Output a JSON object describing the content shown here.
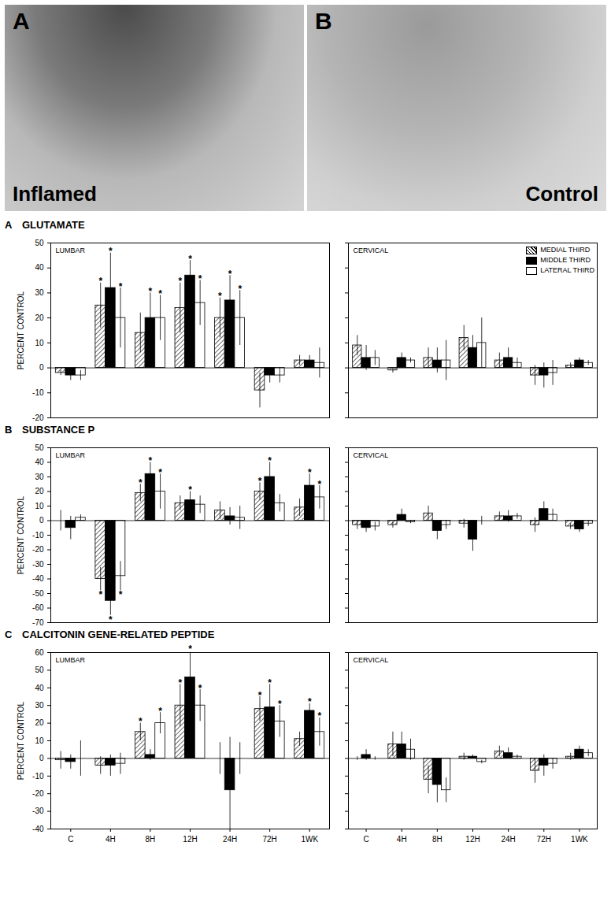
{
  "photos": [
    {
      "panel": "A",
      "label": "Inflamed"
    },
    {
      "panel": "B",
      "label": "Control"
    }
  ],
  "chart_data": [
    {
      "type": "bar",
      "panel": "A",
      "title": "GLUTAMATE",
      "subtitle": "LUMBAR",
      "y_label": "PERCENT CONTROL",
      "categories": [
        "C",
        "4H",
        "8H",
        "12H",
        "24H",
        "72H",
        "1WK"
      ],
      "ylim": [
        -20,
        50
      ],
      "yticks": [
        -20,
        -10,
        0,
        10,
        20,
        30,
        40,
        50
      ],
      "tick_labels": "y",
      "series": [
        {
          "name": "MEDIAL THIRD",
          "color": "#000000",
          "line_style": "hatched",
          "values": [
            -2,
            25,
            14,
            24,
            20,
            -9,
            3
          ],
          "errors": [
            1,
            9,
            8,
            10,
            8,
            7,
            2
          ],
          "significance": [
            null,
            "*",
            null,
            "*",
            "*",
            null,
            null
          ]
        },
        {
          "name": "MIDDLE THIRD",
          "color": "#000000",
          "values": [
            -3,
            32,
            20,
            37,
            27,
            -3,
            3
          ],
          "errors": [
            2,
            14,
            10,
            6,
            10,
            3,
            2
          ],
          "significance": [
            null,
            "*",
            "*",
            "*",
            "*",
            null,
            null
          ]
        },
        {
          "name": "LATERAL THIRD",
          "color": "#ffffff",
          "values": [
            -3,
            20,
            20,
            26,
            20,
            -3,
            2
          ],
          "errors": [
            2,
            12,
            9,
            9,
            11,
            3,
            6
          ],
          "significance": [
            null,
            "*",
            "*",
            "*",
            "*",
            null,
            null
          ]
        }
      ]
    },
    {
      "type": "bar",
      "subtitle": "CERVICAL",
      "legend": "top-right",
      "categories": [
        "C",
        "4H",
        "8H",
        "12H",
        "24H",
        "72H",
        "1WK"
      ],
      "ylim": [
        -20,
        50
      ],
      "yticks": [
        -20,
        -10,
        0,
        10,
        20,
        30,
        40,
        50
      ],
      "tick_labels": false,
      "series": [
        {
          "name": "MEDIAL THIRD",
          "color": "#000000",
          "line_style": "hatched",
          "values": [
            9,
            -1,
            4,
            12,
            3,
            -3,
            1
          ],
          "errors": [
            4,
            1,
            4,
            5,
            3,
            4,
            1
          ],
          "significance": [
            null,
            null,
            null,
            null,
            null,
            null,
            null
          ]
        },
        {
          "name": "MIDDLE THIRD",
          "color": "#000000",
          "values": [
            4,
            4,
            3,
            8,
            4,
            -3,
            3
          ],
          "errors": [
            5,
            2,
            5,
            5,
            4,
            5,
            1
          ],
          "significance": [
            null,
            null,
            null,
            null,
            null,
            null,
            null
          ]
        },
        {
          "name": "LATERAL THIRD",
          "color": "#ffffff",
          "values": [
            4,
            3,
            3,
            10,
            2,
            -2,
            2
          ],
          "errors": [
            3,
            1,
            8,
            10,
            2,
            5,
            1
          ],
          "significance": [
            null,
            null,
            null,
            null,
            null,
            null,
            null
          ]
        }
      ]
    },
    {
      "type": "bar",
      "panel": "B",
      "title": "SUBSTANCE P",
      "subtitle": "LUMBAR",
      "y_label": "PERCENT CONTROL",
      "categories": [
        "C",
        "4H",
        "8H",
        "12H",
        "24H",
        "72H",
        "1WK"
      ],
      "ylim": [
        -70,
        50
      ],
      "yticks": [
        -70,
        -60,
        -50,
        -40,
        -30,
        -20,
        -10,
        0,
        10,
        20,
        30,
        40,
        50
      ],
      "tick_labels": "y",
      "series": [
        {
          "name": "MEDIAL THIRD",
          "color": "#000000",
          "line_style": "hatched",
          "values": [
            0,
            -40,
            19,
            12,
            7,
            20,
            9
          ],
          "errors": [
            7,
            8,
            6,
            5,
            6,
            6,
            6
          ],
          "significance": [
            null,
            "*",
            "*",
            null,
            null,
            "*",
            null
          ]
        },
        {
          "name": "MIDDLE THIRD",
          "color": "#000000",
          "values": [
            -5,
            -55,
            32,
            14,
            3,
            30,
            24
          ],
          "errors": [
            8,
            10,
            8,
            6,
            6,
            10,
            8
          ],
          "significance": [
            null,
            "*",
            "*",
            "*",
            null,
            "*",
            "*"
          ]
        },
        {
          "name": "LATERAL THIRD",
          "color": "#ffffff",
          "values": [
            2,
            -38,
            20,
            11,
            2,
            12,
            16
          ],
          "errors": [
            2,
            10,
            12,
            6,
            8,
            6,
            8
          ],
          "significance": [
            null,
            "*",
            "*",
            null,
            null,
            null,
            "*"
          ]
        }
      ]
    },
    {
      "type": "bar",
      "subtitle": "CERVICAL",
      "categories": [
        "C",
        "4H",
        "8H",
        "12H",
        "24H",
        "72H",
        "1WK"
      ],
      "ylim": [
        -70,
        50
      ],
      "yticks": [
        -70,
        -60,
        -50,
        -40,
        -30,
        -20,
        -10,
        0,
        10,
        20,
        30,
        40,
        50
      ],
      "tick_labels": false,
      "series": [
        {
          "name": "MEDIAL THIRD",
          "color": "#000000",
          "line_style": "hatched",
          "values": [
            -3,
            -3,
            5,
            -2,
            3,
            -3,
            -4
          ],
          "errors": [
            3,
            2,
            5,
            3,
            3,
            5,
            2
          ],
          "significance": [
            null,
            null,
            null,
            null,
            null,
            null,
            null
          ]
        },
        {
          "name": "MIDDLE THIRD",
          "color": "#000000",
          "values": [
            -5,
            4,
            -7,
            -13,
            3,
            8,
            -6
          ],
          "errors": [
            3,
            4,
            6,
            8,
            4,
            5,
            2
          ],
          "significance": [
            null,
            null,
            null,
            null,
            null,
            null,
            null
          ]
        },
        {
          "name": "LATERAL THIRD",
          "color": "#ffffff",
          "values": [
            -4,
            -1,
            -3,
            0,
            3,
            4,
            -2
          ],
          "errors": [
            3,
            1,
            3,
            3,
            2,
            4,
            2
          ],
          "significance": [
            null,
            null,
            null,
            null,
            null,
            null,
            null
          ]
        }
      ]
    },
    {
      "type": "bar",
      "panel": "C",
      "title": "CALCITONIN GENE-RELATED PEPTIDE",
      "subtitle": "LUMBAR",
      "y_label": "PERCENT CONTROL",
      "categories": [
        "C",
        "4H",
        "8H",
        "12H",
        "24H",
        "72H",
        "1WK"
      ],
      "ylim": [
        -40,
        60
      ],
      "yticks": [
        -40,
        -30,
        -20,
        -10,
        0,
        10,
        20,
        30,
        40,
        50,
        60
      ],
      "series": [
        {
          "name": "MEDIAL THIRD",
          "color": "#000000",
          "line_style": "hatched",
          "values": [
            -1,
            -4,
            15,
            30,
            0,
            28,
            11
          ],
          "errors": [
            5,
            5,
            5,
            12,
            9,
            7,
            4
          ],
          "significance": [
            null,
            null,
            "*",
            "*",
            null,
            "*",
            null
          ]
        },
        {
          "name": "MIDDLE THIRD",
          "color": "#000000",
          "values": [
            -2,
            -4,
            2,
            46,
            -18,
            29,
            27
          ],
          "errors": [
            4,
            6,
            3,
            15,
            30,
            13,
            4
          ],
          "significance": [
            null,
            null,
            null,
            "*",
            null,
            "*",
            "*"
          ]
        },
        {
          "name": "LATERAL THIRD",
          "color": "#ffffff",
          "values": [
            0,
            -3,
            20,
            30,
            0,
            21,
            15
          ],
          "errors": [
            10,
            6,
            6,
            9,
            9,
            9,
            8
          ],
          "significance": [
            null,
            null,
            "*",
            "*",
            null,
            "*",
            "*"
          ]
        }
      ]
    },
    {
      "type": "bar",
      "subtitle": "CERVICAL",
      "categories": [
        "C",
        "4H",
        "8H",
        "12H",
        "24H",
        "72H",
        "1WK"
      ],
      "ylim": [
        -40,
        60
      ],
      "yticks": [
        -40,
        -30,
        -20,
        -10,
        0,
        10,
        20,
        30,
        40,
        50,
        60
      ],
      "tick_labels": "x",
      "series": [
        {
          "name": "MEDIAL THIRD",
          "color": "#000000",
          "line_style": "hatched",
          "values": [
            0,
            8,
            -12,
            1,
            4,
            -7,
            1
          ],
          "errors": [
            1,
            7,
            8,
            2,
            3,
            7,
            2
          ],
          "significance": [
            null,
            null,
            null,
            null,
            null,
            null,
            null
          ]
        },
        {
          "name": "MIDDLE THIRD",
          "color": "#000000",
          "values": [
            2,
            8,
            -15,
            1,
            3,
            -4,
            5
          ],
          "errors": [
            3,
            7,
            10,
            1,
            3,
            6,
            2
          ],
          "significance": [
            null,
            null,
            null,
            null,
            null,
            null,
            null
          ]
        },
        {
          "name": "LATERAL THIRD",
          "color": "#ffffff",
          "values": [
            0,
            5,
            -18,
            -2,
            1,
            -3,
            3
          ],
          "errors": [
            1,
            6,
            7,
            1,
            1,
            3,
            2
          ],
          "significance": [
            null,
            null,
            null,
            null,
            null,
            null,
            null
          ]
        }
      ]
    }
  ]
}
